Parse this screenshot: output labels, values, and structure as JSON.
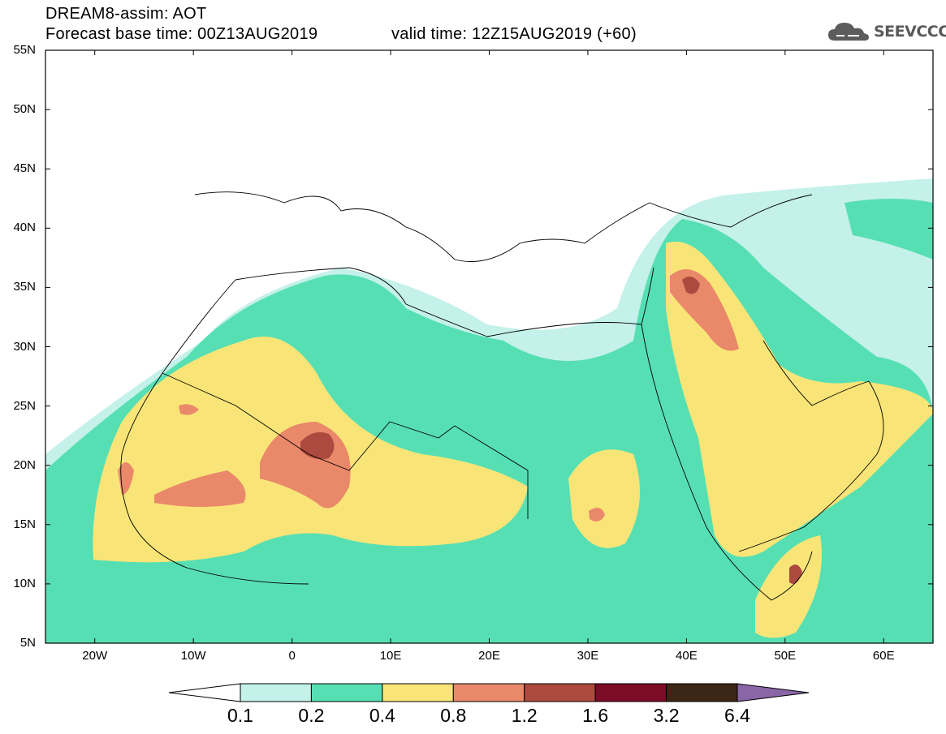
{
  "header": {
    "title": "DREAM8-assim: AOT",
    "base_time": "Forecast base time: 00Z13AUG2019",
    "valid_time": "valid time: 12Z15AUG2019 (+60)"
  },
  "logo": {
    "text": "SEEVCCC",
    "icon": "cloud-icon"
  },
  "map": {
    "lat_labels": [
      "55N",
      "50N",
      "45N",
      "40N",
      "35N",
      "30N",
      "25N",
      "20N",
      "15N",
      "10N",
      "5N"
    ],
    "lon_labels": [
      "20W",
      "10W",
      "0",
      "10E",
      "20E",
      "30E",
      "40E",
      "50E",
      "60E"
    ],
    "lat_range": [
      5,
      55
    ],
    "lon_range": [
      -25,
      65
    ]
  },
  "legend": {
    "labels": [
      "0.1",
      "0.2",
      "0.4",
      "0.8",
      "1.2",
      "1.6",
      "3.2",
      "6.4"
    ],
    "colors": [
      "#ffffff",
      "#c4f1e9",
      "#57dfb4",
      "#f9e577",
      "#e9896a",
      "#ad4a40",
      "#7c0b25",
      "#3c2615",
      "#8a66a6"
    ]
  }
}
